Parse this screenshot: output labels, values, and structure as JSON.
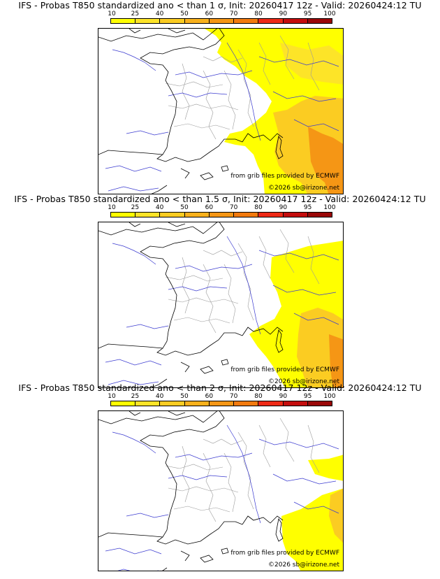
{
  "legend": {
    "ticks": [
      "10",
      "25",
      "40",
      "50",
      "60",
      "70",
      "80",
      "90",
      "95",
      "100"
    ],
    "colors": [
      "#ffff00",
      "#fde428",
      "#fbcc22",
      "#f9b11c",
      "#f59615",
      "#f27a0e",
      "#ee2a16",
      "#c40d0d",
      "#9a0808",
      "#600303"
    ]
  },
  "panels": [
    {
      "title": "IFS - Probas T850  standardized ano < than 1 σ, Init: 20260417 12z - Valid: 20260424:12 TU",
      "credit_source": "from grib files provided by ECMWF",
      "credit_copyright": "©2026 sb@irizone.net",
      "level": "1"
    },
    {
      "title": "IFS - Probas T850  standardized ano < than 1.5 σ, Init: 20260417 12z - Valid: 20260424:12 TU",
      "credit_source": "from grib files provided by ECMWF",
      "credit_copyright": "©2026 sb@irizone.net",
      "level": "1.5"
    },
    {
      "title": "IFS - Probas T850  standardized ano < than 2 σ, Init: 20260417 12z - Valid: 20260424:12 TU",
      "credit_source": "from grib files provided by ECMWF",
      "credit_copyright": "©2026 sb@irizone.net",
      "level": "2"
    }
  ]
}
